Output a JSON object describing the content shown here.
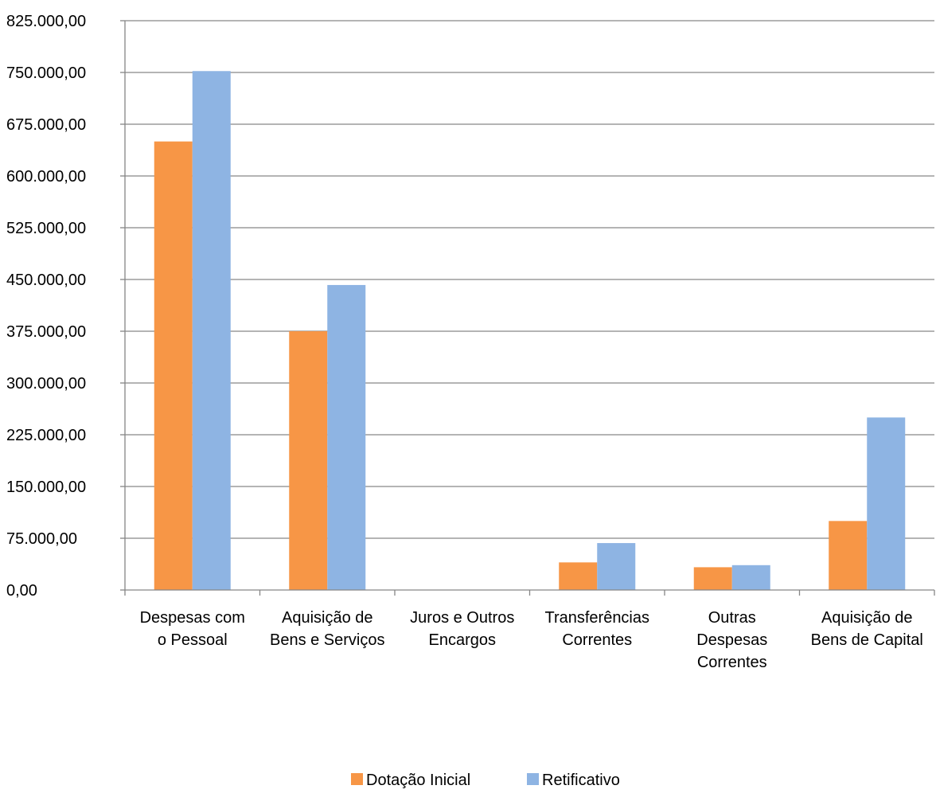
{
  "chart_data": {
    "type": "bar",
    "title": "",
    "xlabel": "",
    "ylabel": "",
    "ylim": [
      0,
      825000
    ],
    "y_ticks": [
      0,
      75000,
      150000,
      225000,
      300000,
      375000,
      450000,
      525000,
      600000,
      675000,
      750000,
      825000
    ],
    "y_tick_labels": [
      "0,00",
      "75.000,00",
      "150.000,00",
      "225.000,00",
      "300.000,00",
      "375.000,00",
      "450.000,00",
      "525.000,00",
      "600.000,00",
      "675.000,00",
      "750.000,00",
      "825.000,00"
    ],
    "grid": true,
    "legend_position": "bottom",
    "categories": [
      [
        "Despesas com",
        "o Pessoal"
      ],
      [
        "Aquisição de",
        "Bens e Serviços"
      ],
      [
        "Juros e Outros",
        "Encargos"
      ],
      [
        "Transferências",
        "Correntes"
      ],
      [
        "Outras",
        "Despesas",
        "Correntes"
      ],
      [
        "Aquisição de",
        "Bens de Capital"
      ]
    ],
    "series": [
      {
        "name": "Dotação Inicial",
        "color": "#F79646",
        "values": [
          650000,
          375000,
          0,
          40000,
          33000,
          100000
        ]
      },
      {
        "name": "Retificativo",
        "color": "#8EB4E3",
        "values": [
          752000,
          442000,
          0,
          68000,
          36000,
          250000
        ]
      }
    ]
  }
}
